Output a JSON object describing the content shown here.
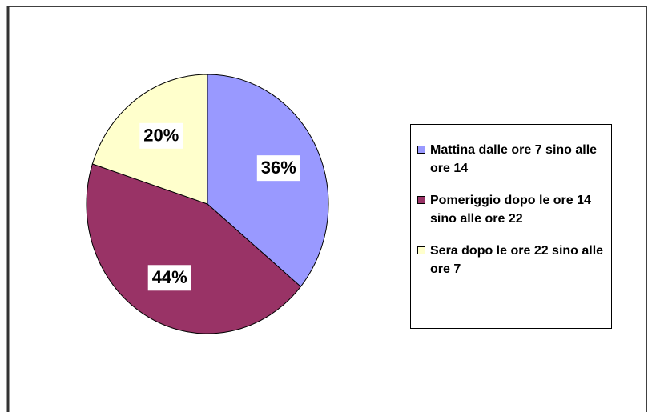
{
  "chart_data": {
    "type": "pie",
    "categories": [
      "Mattina dalle ore 7 sino alle ore 14",
      "Pomeriggio dopo le ore 14 sino alle ore 22",
      "Sera dopo le ore 22 sino alle ore 7"
    ],
    "values": [
      36,
      44,
      20
    ],
    "value_labels": [
      "36%",
      "44%",
      "20%"
    ],
    "colors": [
      "#9999ff",
      "#993366",
      "#ffffcc"
    ],
    "legend": "right"
  }
}
